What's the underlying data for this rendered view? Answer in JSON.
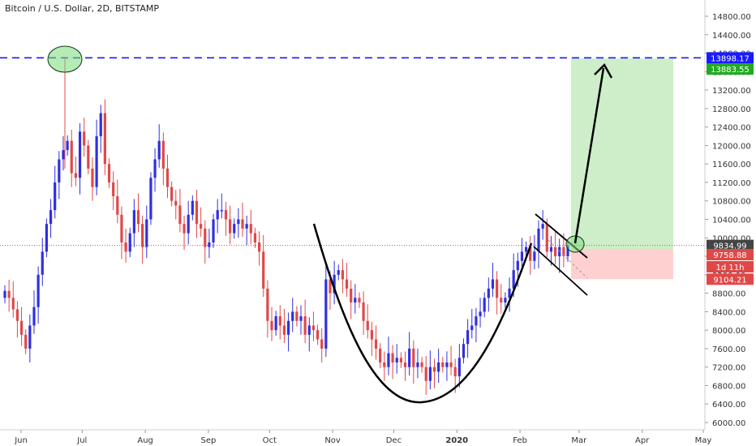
{
  "header": {
    "title": "Bitcoin / U.S. Dollar, 2D, BITSTAMP"
  },
  "chart_data": {
    "type": "candlestick",
    "title": "Bitcoin / U.S. Dollar, 2D, BITSTAMP",
    "ylim": [
      5900,
      15000
    ],
    "y_ticks": [
      6000,
      6400,
      6800,
      7200,
      7600,
      8000,
      8400,
      8800,
      9200,
      9600,
      10000,
      10400,
      10800,
      11200,
      11600,
      12000,
      12400,
      12800,
      13200,
      13600,
      14000,
      14400,
      14800
    ],
    "y_tick_labels": [
      "6000.00",
      "6400.00",
      "6800.00",
      "7200.00",
      "7600.00",
      "8000.00",
      "8400.00",
      "8800.00",
      "9200.00",
      "9600.00",
      "10000.00",
      "10400.00",
      "10800.00",
      "11200.00",
      "11600.00",
      "12000.00",
      "12400.00",
      "12800.00",
      "13200.00",
      "13600.00",
      "14000.00",
      "14400.00",
      "14800.00"
    ],
    "x_ticks": [
      {
        "day": 15,
        "label": "Jun"
      },
      {
        "day": 45,
        "label": "Jul"
      },
      {
        "day": 76,
        "label": "Aug"
      },
      {
        "day": 107,
        "label": "Sep"
      },
      {
        "day": 137,
        "label": "Oct"
      },
      {
        "day": 168,
        "label": "Nov"
      },
      {
        "day": 198,
        "label": "Dec"
      },
      {
        "day": 229,
        "label": "2020"
      },
      {
        "day": 260,
        "label": "Feb"
      },
      {
        "day": 289,
        "label": "Mar"
      },
      {
        "day": 320,
        "label": "Apr"
      },
      {
        "day": 350,
        "label": "May"
      }
    ],
    "x_range_days": [
      15,
      366
    ],
    "colors": {
      "up": "#2f2fe0",
      "down": "#e04848",
      "blue_line": "#1a1aff",
      "target_zone": "#cdeec9",
      "stop_zone": "#ffd0d0"
    },
    "candle_closes": [
      8850,
      8700,
      8450,
      8200,
      7900,
      7600,
      8100,
      8500,
      9200,
      9700,
      10300,
      10600,
      11200,
      11700,
      11900,
      12100,
      11400,
      11300,
      12300,
      12000,
      11500,
      11100,
      12200,
      12700,
      11600,
      11200,
      10900,
      10500,
      9900,
      9700,
      10100,
      10600,
      10300,
      9800,
      10400,
      11300,
      11700,
      12100,
      11500,
      11100,
      10800,
      10700,
      10300,
      10100,
      10500,
      10800,
      10300,
      10200,
      9800,
      9900,
      10400,
      10600,
      10600,
      10400,
      10100,
      10300,
      10400,
      10200,
      10300,
      10100,
      9900,
      9700,
      8900,
      8200,
      8000,
      8300,
      8100,
      7900,
      8200,
      8400,
      8200,
      8300,
      7900,
      8100,
      8000,
      7800,
      7600,
      9100,
      8800,
      9200,
      9300,
      9100,
      8900,
      8600,
      8700,
      8600,
      8200,
      8000,
      7800,
      7600,
      7300,
      7200,
      7500,
      7300,
      7400,
      7300,
      7200,
      7600,
      7200,
      7300,
      7200,
      6900,
      7200,
      7100,
      7300,
      7200,
      7300,
      7200,
      7000,
      7400,
      7700,
      8000,
      8100,
      8300,
      8400,
      8700,
      8900,
      9100,
      8700,
      8600,
      8700,
      8900,
      9300,
      9500,
      9700,
      9800,
      9500,
      9700,
      10200,
      10300,
      9700,
      9800,
      9600,
      9800,
      9600,
      9834.99
    ],
    "last_price": 9834.99,
    "horizontal_levels": [
      {
        "value": 13898.17,
        "label": "13898.17",
        "style": "dashed",
        "color": "#1a1aff"
      },
      {
        "value": 9834.99,
        "label": "9834.99",
        "style": "dotted",
        "color": "#e04848"
      }
    ],
    "price_tags": [
      {
        "label": "13898.17",
        "value": 13898.17,
        "bg": "#1a1aff"
      },
      {
        "label": "13883.55",
        "value": 13883.55,
        "bg": "#22aa22"
      },
      {
        "label": "9834.99",
        "value": 9834.99,
        "bg": "#444444"
      },
      {
        "label": "9758.88",
        "value": 9758.88,
        "bg": "#e04848"
      },
      {
        "label": "1d 11h",
        "value": 9758.88,
        "bg": "#e04848"
      },
      {
        "label": "9104.21",
        "value": 9104.21,
        "bg": "#e04848"
      }
    ],
    "position": {
      "target": 13883.55,
      "entry": 9758.88,
      "stop": 9104.21
    },
    "annotations": [
      "cup-and-handle curve",
      "descending channel (handle)",
      "breakout arrow",
      "circled high",
      "circled breakout"
    ]
  }
}
